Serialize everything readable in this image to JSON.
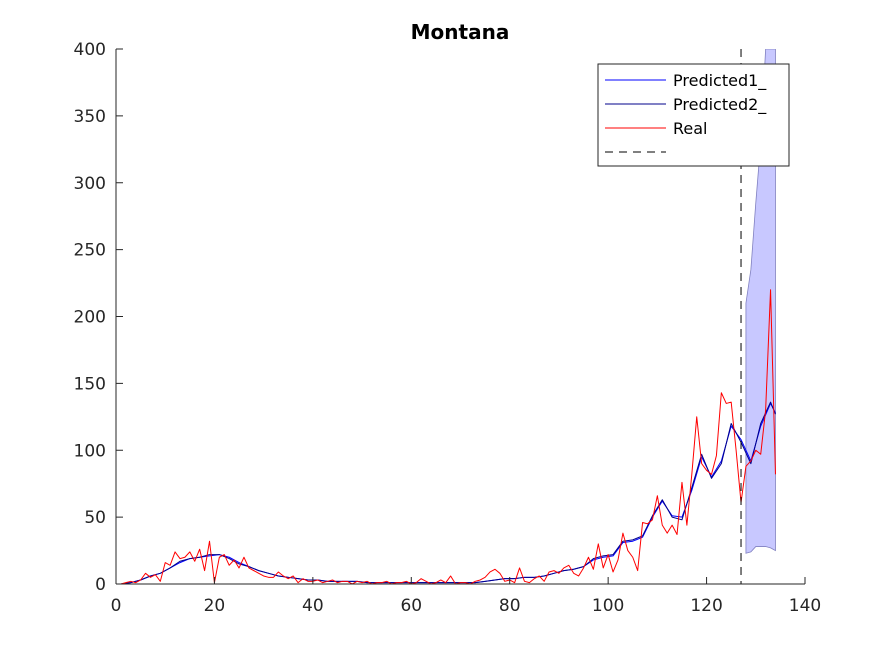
{
  "chart_data": {
    "type": "line",
    "title": "Montana",
    "xlabel": "",
    "ylabel": "",
    "xlim": [
      0,
      140
    ],
    "ylim": [
      0,
      400
    ],
    "x_ticks": [
      0,
      20,
      40,
      60,
      80,
      100,
      120,
      140
    ],
    "y_ticks": [
      0,
      50,
      100,
      150,
      200,
      250,
      300,
      350,
      400
    ],
    "grid": false,
    "legend_position": "top-right",
    "legend": [
      "Predicted1_",
      "Predicted2_",
      "Real",
      ""
    ],
    "vertical_line": {
      "x": 127,
      "style": "dashed",
      "color": "#000000"
    },
    "series": [
      {
        "name": "Predicted1_",
        "color": "#0000ff",
        "points": [
          [
            1,
            0
          ],
          [
            3,
            1
          ],
          [
            5,
            3
          ],
          [
            7,
            6
          ],
          [
            9,
            8
          ],
          [
            11,
            12
          ],
          [
            13,
            16
          ],
          [
            15,
            19
          ],
          [
            17,
            20
          ],
          [
            19,
            21
          ],
          [
            21,
            22
          ],
          [
            23,
            20
          ],
          [
            25,
            16
          ],
          [
            27,
            13
          ],
          [
            29,
            10
          ],
          [
            31,
            8
          ],
          [
            33,
            6
          ],
          [
            35,
            5
          ],
          [
            37,
            4
          ],
          [
            39,
            3
          ],
          [
            41,
            3
          ],
          [
            43,
            2
          ],
          [
            45,
            2
          ],
          [
            47,
            2
          ],
          [
            49,
            2
          ],
          [
            51,
            1
          ],
          [
            53,
            1
          ],
          [
            55,
            1
          ],
          [
            57,
            1
          ],
          [
            59,
            1
          ],
          [
            61,
            1
          ],
          [
            63,
            1
          ],
          [
            65,
            1
          ],
          [
            67,
            1
          ],
          [
            69,
            1
          ],
          [
            71,
            1
          ],
          [
            73,
            1
          ],
          [
            75,
            2
          ],
          [
            77,
            3
          ],
          [
            79,
            4
          ],
          [
            81,
            4
          ],
          [
            83,
            5
          ],
          [
            85,
            5
          ],
          [
            87,
            6
          ],
          [
            89,
            8
          ],
          [
            91,
            10
          ],
          [
            93,
            11
          ],
          [
            95,
            13
          ],
          [
            97,
            18
          ],
          [
            99,
            20
          ],
          [
            101,
            21
          ],
          [
            103,
            31
          ],
          [
            105,
            32
          ],
          [
            107,
            35
          ],
          [
            109,
            50
          ],
          [
            111,
            62
          ],
          [
            113,
            51
          ],
          [
            115,
            50
          ],
          [
            117,
            70
          ],
          [
            119,
            95
          ],
          [
            121,
            80
          ],
          [
            123,
            92
          ],
          [
            125,
            118
          ],
          [
            127,
            108
          ],
          [
            129,
            92
          ],
          [
            131,
            118
          ],
          [
            133,
            135
          ],
          [
            134,
            128
          ]
        ]
      },
      {
        "name": "Predicted2_",
        "color": "#00008b",
        "points": [
          [
            1,
            0
          ],
          [
            3,
            1
          ],
          [
            5,
            3
          ],
          [
            7,
            6
          ],
          [
            9,
            8
          ],
          [
            11,
            12
          ],
          [
            13,
            17
          ],
          [
            15,
            19
          ],
          [
            17,
            20
          ],
          [
            19,
            22
          ],
          [
            21,
            22
          ],
          [
            23,
            19
          ],
          [
            25,
            15
          ],
          [
            27,
            13
          ],
          [
            29,
            10
          ],
          [
            31,
            8
          ],
          [
            33,
            6
          ],
          [
            35,
            5
          ],
          [
            37,
            4
          ],
          [
            39,
            3
          ],
          [
            41,
            3
          ],
          [
            43,
            2
          ],
          [
            45,
            2
          ],
          [
            47,
            2
          ],
          [
            49,
            2
          ],
          [
            51,
            1
          ],
          [
            53,
            1
          ],
          [
            55,
            1
          ],
          [
            57,
            1
          ],
          [
            59,
            1
          ],
          [
            61,
            1
          ],
          [
            63,
            1
          ],
          [
            65,
            1
          ],
          [
            67,
            1
          ],
          [
            69,
            1
          ],
          [
            71,
            1
          ],
          [
            73,
            1
          ],
          [
            75,
            2
          ],
          [
            77,
            3
          ],
          [
            79,
            4
          ],
          [
            81,
            4
          ],
          [
            83,
            5
          ],
          [
            85,
            5
          ],
          [
            87,
            6
          ],
          [
            89,
            8
          ],
          [
            91,
            10
          ],
          [
            93,
            11
          ],
          [
            95,
            13
          ],
          [
            97,
            19
          ],
          [
            99,
            21
          ],
          [
            101,
            22
          ],
          [
            103,
            32
          ],
          [
            105,
            33
          ],
          [
            107,
            36
          ],
          [
            109,
            51
          ],
          [
            111,
            63
          ],
          [
            113,
            50
          ],
          [
            115,
            48
          ],
          [
            117,
            72
          ],
          [
            119,
            97
          ],
          [
            121,
            79
          ],
          [
            123,
            90
          ],
          [
            125,
            120
          ],
          [
            127,
            106
          ],
          [
            129,
            90
          ],
          [
            131,
            120
          ],
          [
            133,
            136
          ],
          [
            134,
            127
          ]
        ]
      },
      {
        "name": "Real",
        "color": "#ff0000",
        "points": [
          [
            1,
            0
          ],
          [
            2,
            1
          ],
          [
            3,
            2
          ],
          [
            4,
            1
          ],
          [
            5,
            3
          ],
          [
            6,
            8
          ],
          [
            7,
            5
          ],
          [
            8,
            7
          ],
          [
            9,
            2
          ],
          [
            10,
            16
          ],
          [
            11,
            14
          ],
          [
            12,
            24
          ],
          [
            13,
            19
          ],
          [
            14,
            20
          ],
          [
            15,
            24
          ],
          [
            16,
            17
          ],
          [
            17,
            26
          ],
          [
            18,
            10
          ],
          [
            19,
            32
          ],
          [
            20,
            1
          ],
          [
            21,
            20
          ],
          [
            22,
            22
          ],
          [
            23,
            14
          ],
          [
            24,
            18
          ],
          [
            25,
            12
          ],
          [
            26,
            20
          ],
          [
            27,
            12
          ],
          [
            28,
            10
          ],
          [
            29,
            8
          ],
          [
            30,
            6
          ],
          [
            31,
            5
          ],
          [
            32,
            5
          ],
          [
            33,
            9
          ],
          [
            34,
            6
          ],
          [
            35,
            4
          ],
          [
            36,
            6
          ],
          [
            37,
            1
          ],
          [
            38,
            4
          ],
          [
            39,
            2
          ],
          [
            40,
            2
          ],
          [
            41,
            3
          ],
          [
            42,
            1
          ],
          [
            43,
            2
          ],
          [
            44,
            3
          ],
          [
            45,
            1
          ],
          [
            46,
            2
          ],
          [
            47,
            2
          ],
          [
            48,
            0
          ],
          [
            49,
            2
          ],
          [
            50,
            1
          ],
          [
            51,
            2
          ],
          [
            52,
            0
          ],
          [
            53,
            1
          ],
          [
            54,
            1
          ],
          [
            55,
            2
          ],
          [
            56,
            0
          ],
          [
            57,
            1
          ],
          [
            58,
            1
          ],
          [
            59,
            2
          ],
          [
            60,
            0
          ],
          [
            61,
            1
          ],
          [
            62,
            4
          ],
          [
            63,
            2
          ],
          [
            64,
            0
          ],
          [
            65,
            1
          ],
          [
            66,
            3
          ],
          [
            67,
            1
          ],
          [
            68,
            6
          ],
          [
            69,
            0
          ],
          [
            70,
            1
          ],
          [
            71,
            1
          ],
          [
            72,
            0
          ],
          [
            73,
            2
          ],
          [
            74,
            3
          ],
          [
            75,
            5
          ],
          [
            76,
            9
          ],
          [
            77,
            11
          ],
          [
            78,
            8
          ],
          [
            79,
            2
          ],
          [
            80,
            3
          ],
          [
            81,
            1
          ],
          [
            82,
            12
          ],
          [
            83,
            2
          ],
          [
            84,
            1
          ],
          [
            85,
            4
          ],
          [
            86,
            6
          ],
          [
            87,
            2
          ],
          [
            88,
            9
          ],
          [
            89,
            10
          ],
          [
            90,
            8
          ],
          [
            91,
            12
          ],
          [
            92,
            14
          ],
          [
            93,
            8
          ],
          [
            94,
            6
          ],
          [
            95,
            12
          ],
          [
            96,
            20
          ],
          [
            97,
            11
          ],
          [
            98,
            30
          ],
          [
            99,
            12
          ],
          [
            100,
            22
          ],
          [
            101,
            9
          ],
          [
            102,
            18
          ],
          [
            103,
            38
          ],
          [
            104,
            25
          ],
          [
            105,
            20
          ],
          [
            106,
            10
          ],
          [
            107,
            46
          ],
          [
            108,
            45
          ],
          [
            109,
            48
          ],
          [
            110,
            66
          ],
          [
            111,
            44
          ],
          [
            112,
            38
          ],
          [
            113,
            44
          ],
          [
            114,
            37
          ],
          [
            115,
            76
          ],
          [
            116,
            44
          ],
          [
            117,
            82
          ],
          [
            118,
            125
          ],
          [
            119,
            90
          ],
          [
            120,
            85
          ],
          [
            121,
            82
          ],
          [
            122,
            96
          ],
          [
            123,
            143
          ],
          [
            124,
            135
          ],
          [
            125,
            136
          ],
          [
            126,
            100
          ],
          [
            127,
            61
          ],
          [
            128,
            88
          ],
          [
            129,
            92
          ],
          [
            130,
            100
          ],
          [
            131,
            97
          ],
          [
            132,
            130
          ],
          [
            133,
            220
          ],
          [
            134,
            82
          ]
        ]
      }
    ],
    "confidence_band": {
      "color": "#c8c8ff",
      "x": [
        128,
        129,
        130,
        131,
        132,
        133,
        134
      ],
      "upper": [
        210,
        235,
        285,
        330,
        400,
        400,
        400
      ],
      "lower": [
        23,
        24,
        28,
        28,
        28,
        27,
        25
      ]
    }
  }
}
